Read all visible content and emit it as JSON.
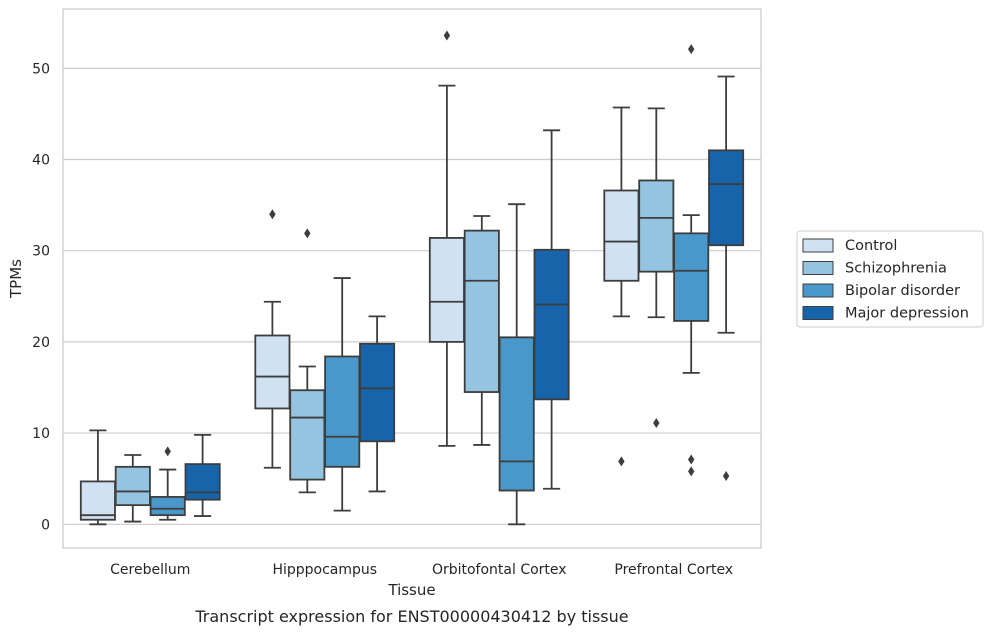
{
  "chart_data": {
    "type": "box",
    "title": "",
    "caption": "Transcript expression for ENST00000430412 by tissue",
    "xlabel": "Tissue",
    "ylabel": "TPMs",
    "ylim": [
      -2.6,
      56.5
    ],
    "yticks": [
      0,
      10,
      20,
      30,
      40,
      50
    ],
    "grid": "horizontal",
    "legend_position": "right",
    "categories": [
      "Cerebellum",
      "Hipppocampus",
      "Orbitofontal Cortex",
      "Prefrontal Cortex"
    ],
    "series": [
      {
        "name": "Control",
        "color": "#d0e1f2",
        "boxes": [
          {
            "q1": 0.5,
            "median": 1.0,
            "q3": 4.7,
            "whislo": 0.0,
            "whishi": 10.3,
            "fliers": []
          },
          {
            "q1": 12.7,
            "median": 16.2,
            "q3": 20.7,
            "whislo": 6.2,
            "whishi": 24.4,
            "fliers": [
              34.0
            ]
          },
          {
            "q1": 20.0,
            "median": 24.4,
            "q3": 31.4,
            "whislo": 8.6,
            "whishi": 48.1,
            "fliers": [
              53.6
            ]
          },
          {
            "q1": 26.7,
            "median": 31.0,
            "q3": 36.6,
            "whislo": 22.8,
            "whishi": 45.7,
            "fliers": [
              6.9
            ]
          }
        ]
      },
      {
        "name": "Schizophrenia",
        "color": "#94c4df",
        "boxes": [
          {
            "q1": 2.1,
            "median": 3.6,
            "q3": 6.3,
            "whislo": 0.3,
            "whishi": 7.6,
            "fliers": []
          },
          {
            "q1": 4.9,
            "median": 11.7,
            "q3": 14.7,
            "whislo": 3.5,
            "whishi": 17.3,
            "fliers": [
              31.9
            ]
          },
          {
            "q1": 14.5,
            "median": 26.7,
            "q3": 32.2,
            "whislo": 8.7,
            "whishi": 33.8,
            "fliers": []
          },
          {
            "q1": 27.7,
            "median": 33.6,
            "q3": 37.7,
            "whislo": 22.7,
            "whishi": 45.6,
            "fliers": [
              11.1
            ]
          }
        ]
      },
      {
        "name": "Bipolar disorder",
        "color": "#4a98c9",
        "boxes": [
          {
            "q1": 1.0,
            "median": 1.7,
            "q3": 3.0,
            "whislo": 0.5,
            "whishi": 6.0,
            "fliers": [
              8.0
            ]
          },
          {
            "q1": 6.3,
            "median": 9.6,
            "q3": 18.4,
            "whislo": 1.5,
            "whishi": 27.0,
            "fliers": []
          },
          {
            "q1": 3.7,
            "median": 6.9,
            "q3": 20.5,
            "whislo": 0.0,
            "whishi": 35.1,
            "fliers": []
          },
          {
            "q1": 22.3,
            "median": 27.8,
            "q3": 31.9,
            "whislo": 16.6,
            "whishi": 33.9,
            "fliers": [
              52.1,
              7.1,
              5.8
            ]
          }
        ]
      },
      {
        "name": "Major depression",
        "color": "#1764ab",
        "boxes": [
          {
            "q1": 2.7,
            "median": 3.5,
            "q3": 6.6,
            "whislo": 0.9,
            "whishi": 9.8,
            "fliers": []
          },
          {
            "q1": 9.1,
            "median": 14.9,
            "q3": 19.8,
            "whislo": 3.6,
            "whishi": 22.8,
            "fliers": []
          },
          {
            "q1": 13.7,
            "median": 24.1,
            "q3": 30.1,
            "whislo": 3.9,
            "whishi": 43.2,
            "fliers": []
          },
          {
            "q1": 30.6,
            "median": 37.3,
            "q3": 41.0,
            "whislo": 21.0,
            "whishi": 49.1,
            "fliers": [
              5.3
            ]
          }
        ]
      }
    ]
  }
}
